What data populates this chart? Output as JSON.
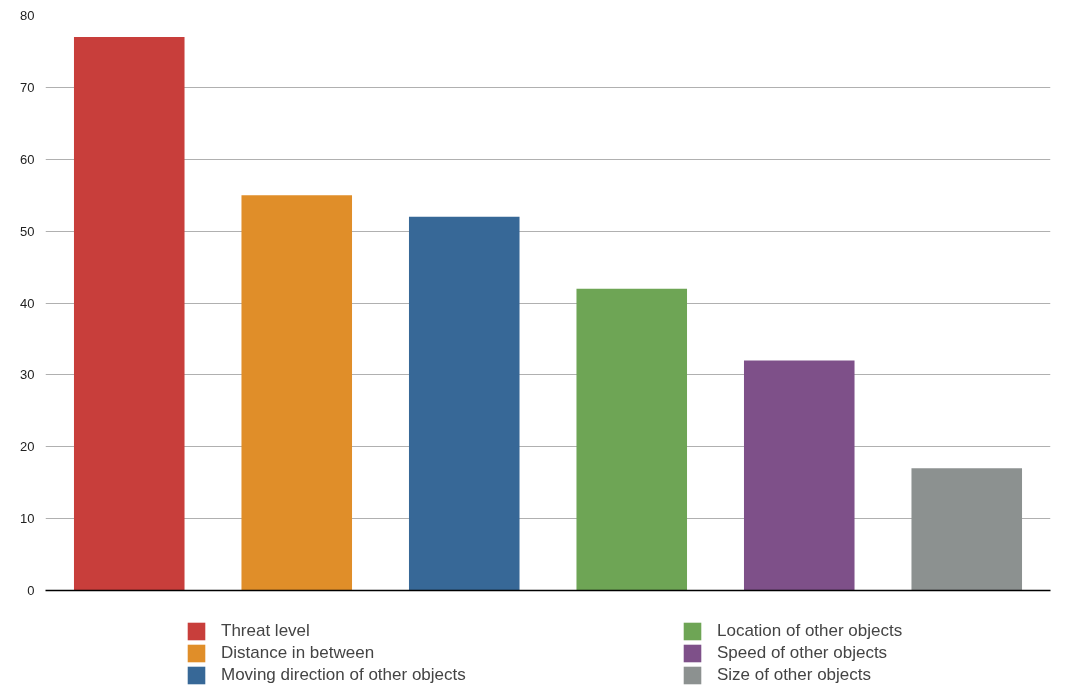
{
  "chart_data": {
    "type": "bar",
    "categories": [
      null,
      null,
      null,
      null,
      null,
      null
    ],
    "series": [
      {
        "name": "Threat level",
        "color": "#c83e3b",
        "values": [
          77,
          null,
          null,
          null,
          null,
          null
        ]
      },
      {
        "name": "Distance in between",
        "color": "#e08e29",
        "values": [
          null,
          55,
          null,
          null,
          null,
          null
        ]
      },
      {
        "name": "Moving direction of other objects",
        "color": "#376897",
        "values": [
          null,
          null,
          52,
          null,
          null,
          null
        ]
      },
      {
        "name": "Location of other objects",
        "color": "#6ea555",
        "values": [
          null,
          null,
          null,
          42,
          null,
          null
        ]
      },
      {
        "name": "Speed of other objects",
        "color": "#7e5089",
        "values": [
          null,
          null,
          null,
          null,
          32,
          null
        ]
      },
      {
        "name": "Size of other objects",
        "color": "#8c9190",
        "values": [
          null,
          null,
          null,
          null,
          null,
          17
        ]
      }
    ],
    "ylim": [
      0,
      80
    ],
    "yticks": [
      0,
      10,
      20,
      30,
      40,
      50,
      60,
      70,
      80
    ],
    "grid": "y",
    "legend": "bottom",
    "tick_labels": "y"
  }
}
